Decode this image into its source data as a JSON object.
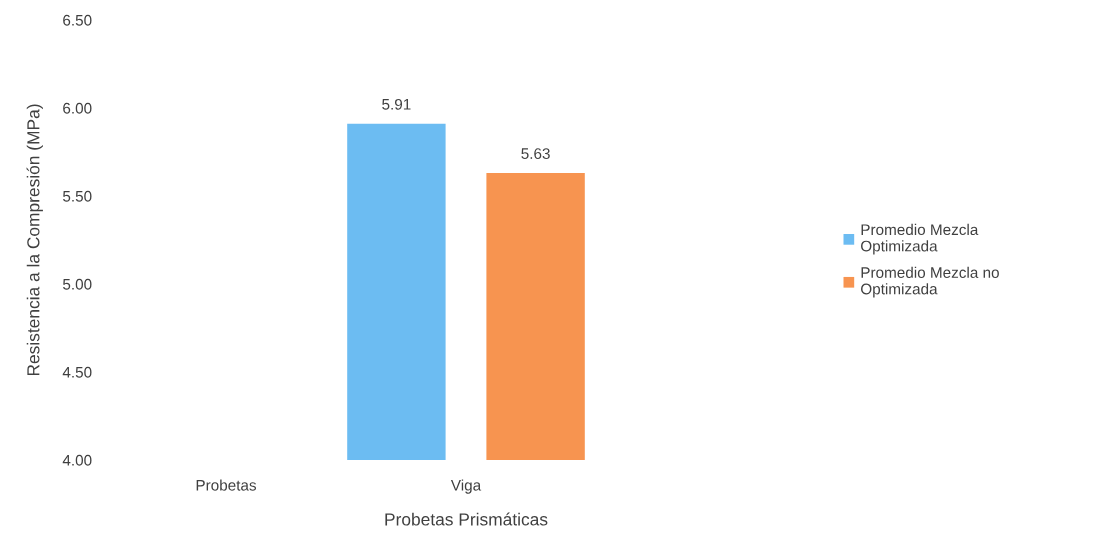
{
  "chart_data": {
    "type": "bar",
    "xlabel": "Probetas Prismáticas",
    "ylabel": "Resistencia a la Compresión (MPa)",
    "categories": [
      "Probetas",
      "Viga"
    ],
    "series": [
      {
        "name": "Promedio Mezcla Optimizada",
        "color": "#6cbcf2",
        "values": [
          null,
          5.91
        ]
      },
      {
        "name": "Promedio Mezcla no Optimizada",
        "color": "#f79450",
        "values": [
          null,
          5.63
        ]
      }
    ],
    "ylim": [
      4.0,
      6.5
    ],
    "yticks": [
      {
        "value": 4.0,
        "label": "4.00"
      },
      {
        "value": 4.5,
        "label": "4.50"
      },
      {
        "value": 5.0,
        "label": "5.00"
      },
      {
        "value": 5.5,
        "label": "5.50"
      },
      {
        "value": 6.0,
        "label": "6.00"
      },
      {
        "value": 6.5,
        "label": "6.50"
      }
    ],
    "data_labels": true,
    "grid": false,
    "legend": "right"
  }
}
